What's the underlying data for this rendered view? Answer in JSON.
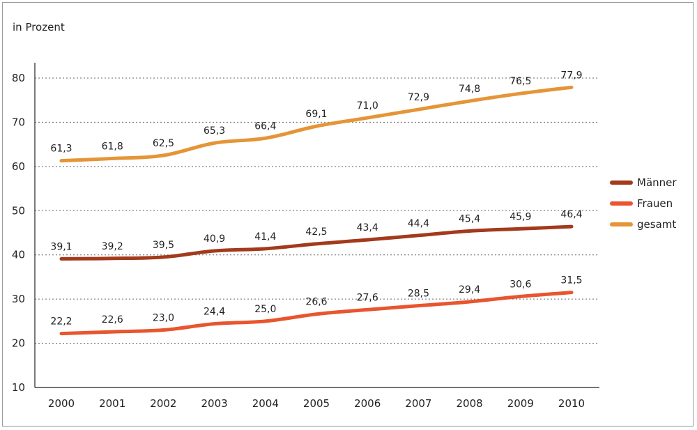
{
  "chart_data": {
    "type": "line",
    "ylabel": "in Prozent",
    "ylim": [
      10,
      85
    ],
    "yticks": [
      10,
      20,
      30,
      40,
      50,
      60,
      70,
      80
    ],
    "x": [
      "2000",
      "2001",
      "2002",
      "2003",
      "2004",
      "2005",
      "2006",
      "2007",
      "2008",
      "2009",
      "2010"
    ],
    "grid": "horizontal dashed",
    "legend_position": "right",
    "series": [
      {
        "name": "Männer",
        "color": "#a33a1c",
        "values": [
          39.1,
          39.2,
          39.5,
          40.9,
          41.4,
          42.5,
          43.4,
          44.4,
          45.4,
          45.9,
          46.4
        ],
        "labels": [
          "39,1",
          "39,2",
          "39,5",
          "40,9",
          "41,4",
          "42,5",
          "43,4",
          "44,4",
          "45,4",
          "45,9",
          "46,4"
        ]
      },
      {
        "name": "Frauen",
        "color": "#e8552e",
        "values": [
          22.2,
          22.6,
          23.0,
          24.4,
          25.0,
          26.6,
          27.6,
          28.5,
          29.4,
          30.6,
          31.5
        ],
        "labels": [
          "22,2",
          "22,6",
          "23,0",
          "24,4",
          "25,0",
          "26,6",
          "27,6",
          "28,5",
          "29,4",
          "30,6",
          "31,5"
        ]
      },
      {
        "name": "gesamt",
        "color": "#e59537",
        "values": [
          61.3,
          61.8,
          62.5,
          65.3,
          66.4,
          69.1,
          71.0,
          72.9,
          74.8,
          76.5,
          77.9
        ],
        "labels": [
          "61,3",
          "61,8",
          "62,5",
          "65,3",
          "66,4",
          "69,1",
          "71,0",
          "72,9",
          "74,8",
          "76,5",
          "77,9"
        ]
      }
    ]
  }
}
